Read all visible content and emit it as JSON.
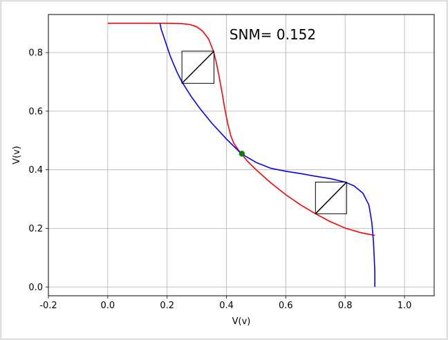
{
  "chart_data": {
    "type": "line",
    "title": "",
    "xlabel": "V(v)",
    "ylabel": "V(v)",
    "xlim": [
      -0.2,
      1.1
    ],
    "ylim": [
      -0.03,
      0.93
    ],
    "grid": true,
    "xticks": [
      "-0.2",
      "0.0",
      "0.2",
      "0.4",
      "0.6",
      "0.8",
      "1.0"
    ],
    "yticks": [
      "0.0",
      "0.2",
      "0.4",
      "0.6",
      "0.8"
    ],
    "annotation": "SNM= 0.152",
    "colors": {
      "series_red": "#ff0000",
      "series_blue": "#0000ff",
      "intersection": "#008000",
      "squares": "#000000",
      "grid": "#b0b0b0"
    },
    "series": [
      {
        "color": "#ff0000",
        "x": [
          0.0,
          0.2,
          0.25,
          0.28,
          0.3,
          0.32,
          0.34,
          0.355,
          0.365,
          0.375,
          0.385,
          0.395,
          0.405,
          0.415,
          0.425,
          0.44,
          0.45,
          0.47,
          0.5,
          0.55,
          0.6,
          0.65,
          0.7,
          0.75,
          0.8,
          0.85,
          0.9
        ],
        "y": [
          0.9,
          0.9,
          0.899,
          0.895,
          0.888,
          0.873,
          0.846,
          0.808,
          0.77,
          0.72,
          0.665,
          0.605,
          0.555,
          0.515,
          0.49,
          0.468,
          0.455,
          0.43,
          0.4,
          0.355,
          0.315,
          0.28,
          0.25,
          0.223,
          0.201,
          0.186,
          0.176
        ]
      },
      {
        "color": "#0000ff",
        "x": [
          0.176,
          0.18,
          0.19,
          0.2,
          0.21,
          0.22,
          0.235,
          0.25,
          0.28,
          0.31,
          0.35,
          0.4,
          0.45,
          0.5,
          0.55,
          0.6,
          0.65,
          0.7,
          0.75,
          0.8,
          0.83,
          0.86,
          0.88,
          0.89,
          0.895,
          0.898,
          0.9,
          0.9
        ],
        "y": [
          0.9,
          0.88,
          0.85,
          0.82,
          0.79,
          0.765,
          0.73,
          0.7,
          0.652,
          0.61,
          0.56,
          0.505,
          0.455,
          0.425,
          0.405,
          0.395,
          0.387,
          0.378,
          0.37,
          0.358,
          0.345,
          0.32,
          0.28,
          0.22,
          0.16,
          0.1,
          0.05,
          0.0
        ]
      }
    ],
    "intersection_point": {
      "x": 0.452,
      "y": 0.455,
      "color": "#008000"
    },
    "squares": [
      {
        "x0": 0.25,
        "y0": 0.695,
        "x1": 0.358,
        "y1": 0.805
      },
      {
        "x0": 0.7,
        "y0": 0.25,
        "x1": 0.805,
        "y1": 0.358
      }
    ]
  }
}
